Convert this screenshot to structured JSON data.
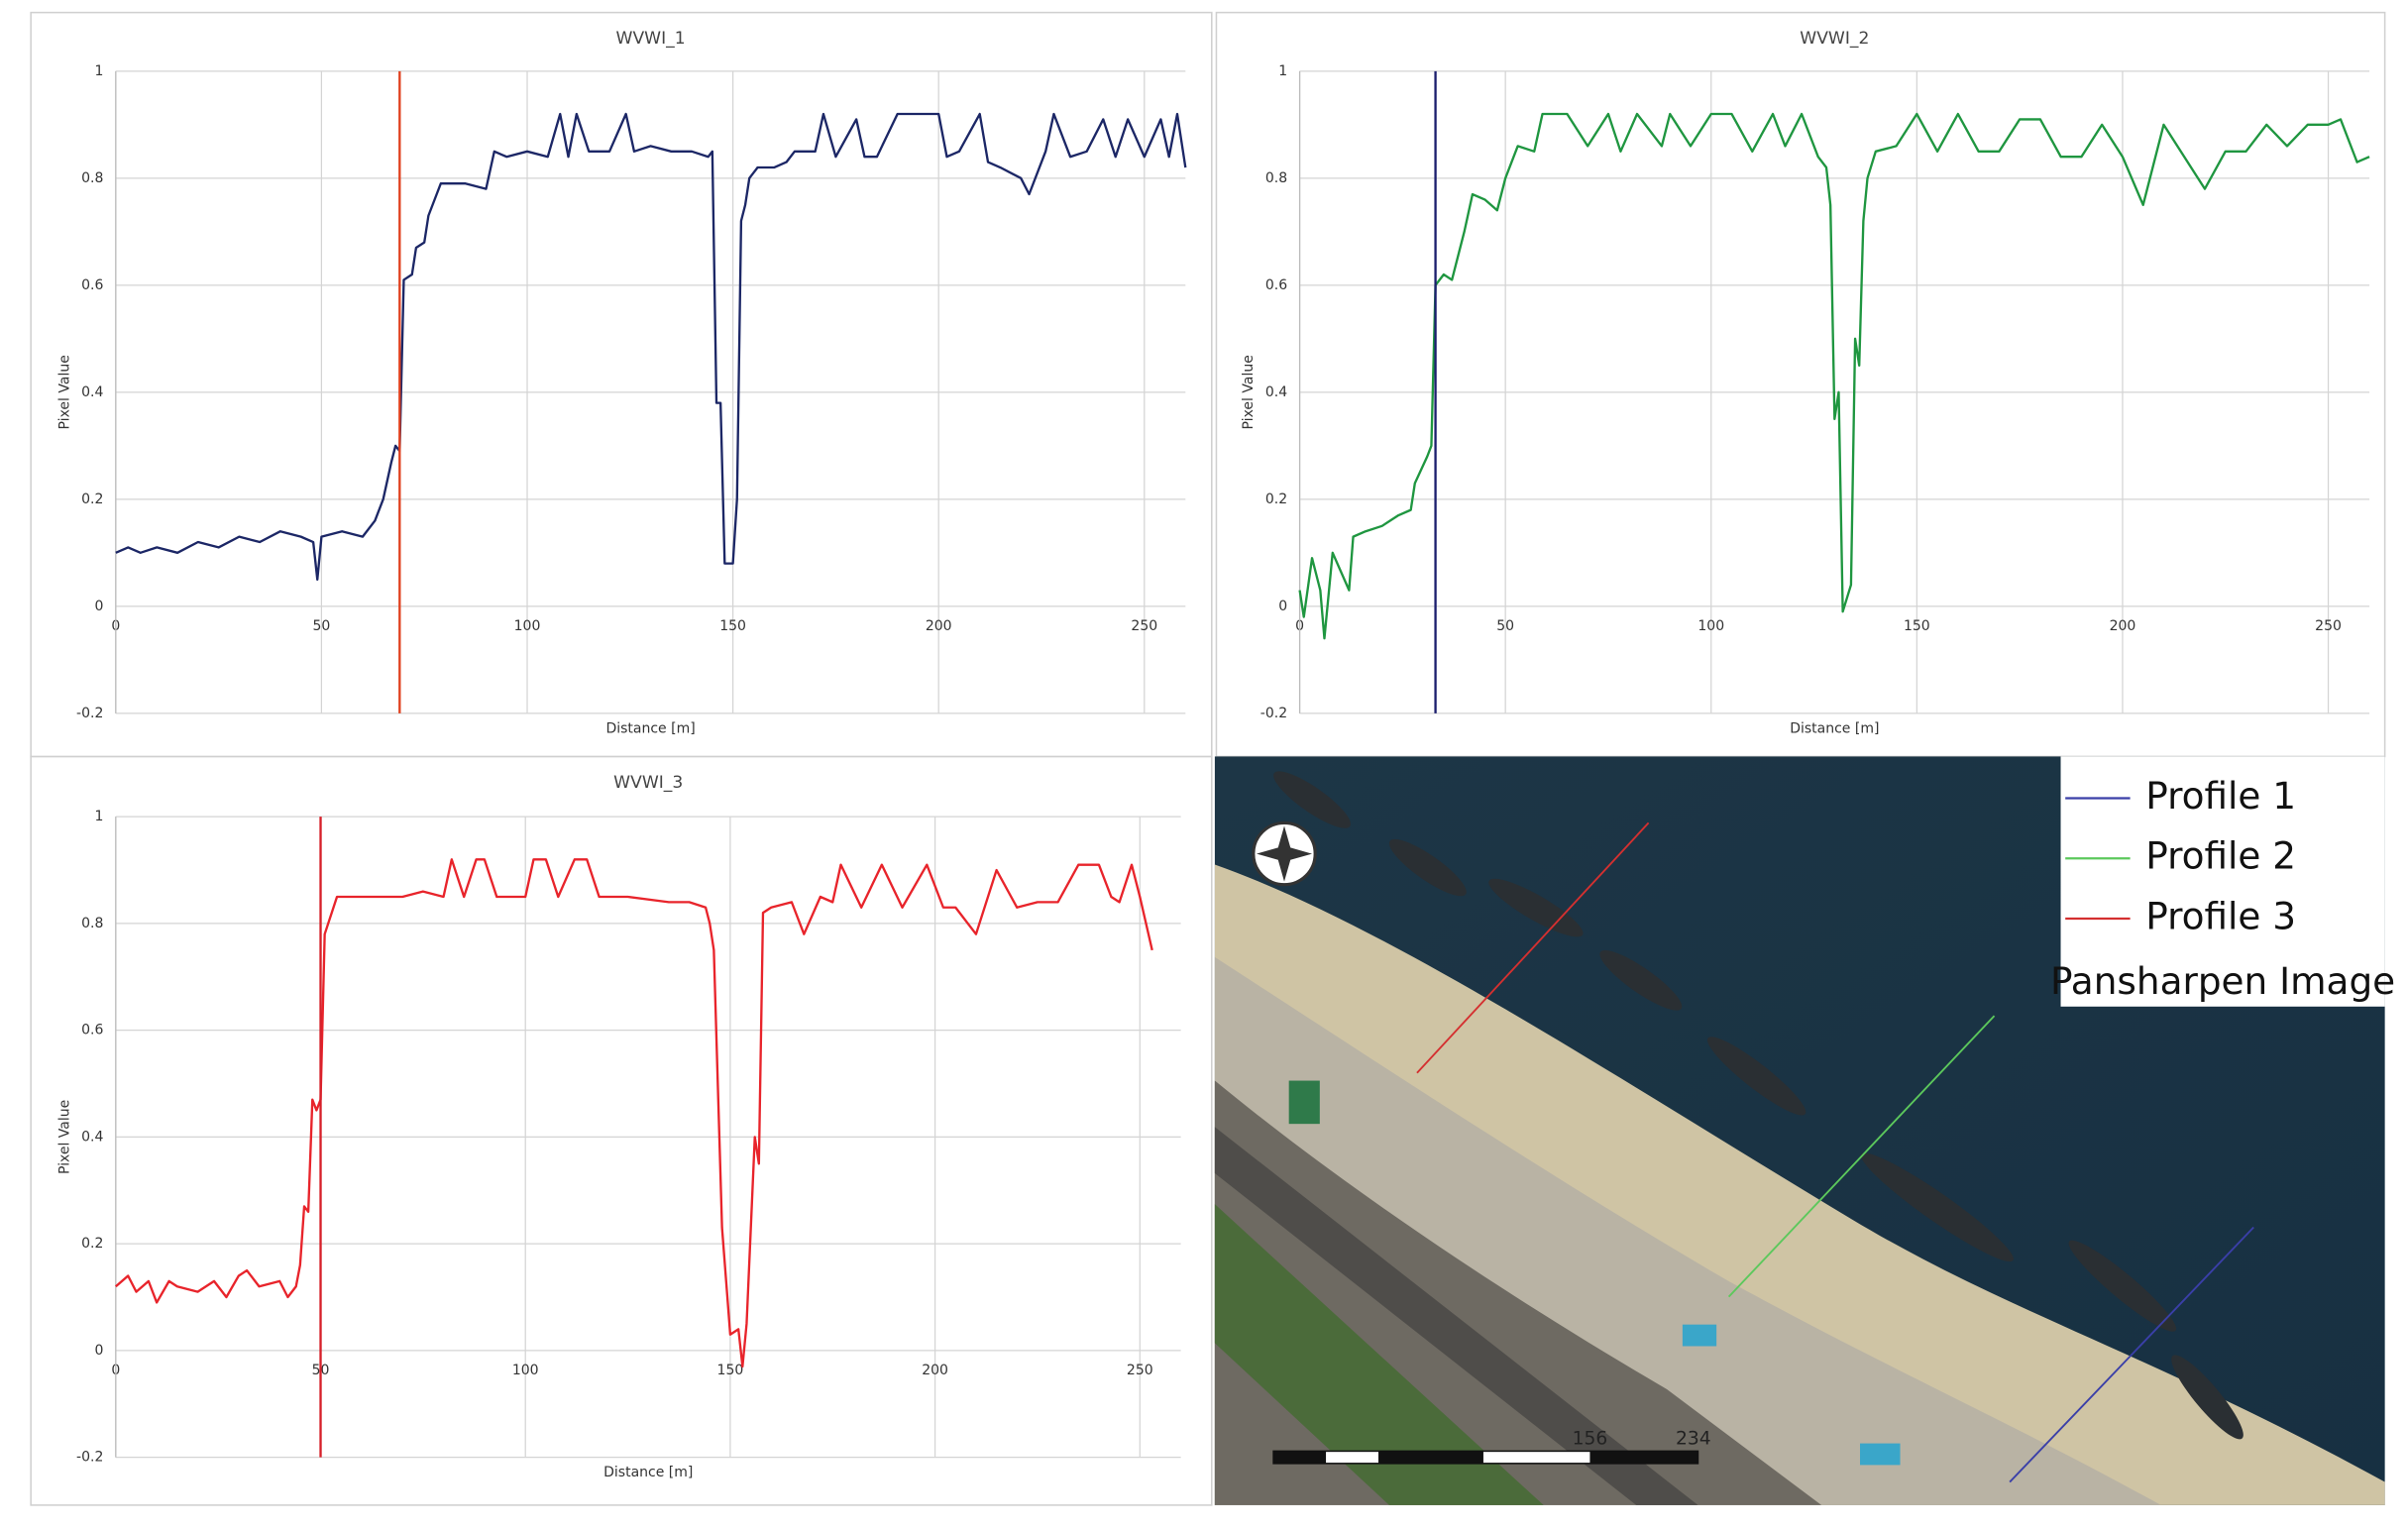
{
  "chart_data": [
    {
      "type": "line",
      "title": "WVWI_1",
      "xlabel": "Distance [m]",
      "ylabel": "Pixel Value",
      "color": "#1c2766",
      "grid": true,
      "xlim": [
        0,
        260
      ],
      "ylim": [
        -0.2,
        1
      ],
      "xticks": [
        0,
        50,
        100,
        150,
        200,
        250
      ],
      "yticks": [
        -0.2,
        0,
        0.2,
        0.4,
        0.6,
        0.8,
        1
      ],
      "vline": {
        "x": 69,
        "color": "#e0401e"
      },
      "x": [
        0,
        3,
        6,
        10,
        15,
        20,
        25,
        30,
        35,
        40,
        45,
        48,
        49,
        50,
        55,
        60,
        63,
        65,
        67,
        68,
        69,
        70,
        72,
        73,
        75,
        76,
        78,
        79,
        85,
        90,
        92,
        95,
        100,
        105,
        108,
        110,
        112,
        115,
        120,
        124,
        126,
        130,
        135,
        140,
        144,
        145,
        146,
        147,
        148,
        150,
        151,
        152,
        153,
        154,
        156,
        160,
        163,
        165,
        170,
        172,
        175,
        180,
        182,
        185,
        190,
        195,
        200,
        202,
        205,
        210,
        212,
        215,
        220,
        222,
        226,
        228,
        232,
        236,
        240,
        243,
        246,
        250,
        254,
        256,
        258,
        260
      ],
      "values": [
        0.1,
        0.11,
        0.1,
        0.11,
        0.1,
        0.12,
        0.11,
        0.13,
        0.12,
        0.14,
        0.13,
        0.12,
        0.05,
        0.13,
        0.14,
        0.13,
        0.16,
        0.2,
        0.27,
        0.3,
        0.29,
        0.61,
        0.62,
        0.67,
        0.68,
        0.73,
        0.77,
        0.79,
        0.79,
        0.78,
        0.85,
        0.84,
        0.85,
        0.84,
        0.92,
        0.84,
        0.92,
        0.85,
        0.85,
        0.92,
        0.85,
        0.86,
        0.85,
        0.85,
        0.84,
        0.85,
        0.38,
        0.38,
        0.08,
        0.08,
        0.2,
        0.72,
        0.75,
        0.8,
        0.82,
        0.82,
        0.83,
        0.85,
        0.85,
        0.92,
        0.84,
        0.91,
        0.84,
        0.84,
        0.92,
        0.92,
        0.92,
        0.84,
        0.85,
        0.92,
        0.83,
        0.82,
        0.8,
        0.77,
        0.85,
        0.92,
        0.84,
        0.85,
        0.91,
        0.84,
        0.91,
        0.84,
        0.91,
        0.84,
        0.92,
        0.82
      ]
    },
    {
      "type": "line",
      "title": "WVWI_2",
      "xlabel": "Distance [m]",
      "ylabel": "Pixel Value",
      "color": "#1f9640",
      "grid": true,
      "xlim": [
        0,
        260
      ],
      "ylim": [
        -0.2,
        1
      ],
      "xticks": [
        0,
        50,
        100,
        150,
        200,
        250
      ],
      "yticks": [
        -0.2,
        0,
        0.2,
        0.4,
        0.6,
        0.8,
        1
      ],
      "vline": {
        "x": 33,
        "color": "#1c1f6e"
      },
      "x": [
        0,
        1,
        3,
        5,
        6,
        8,
        12,
        13,
        16,
        20,
        24,
        27,
        28,
        31,
        32,
        33,
        35,
        37,
        40,
        42,
        45,
        48,
        50,
        53,
        57,
        59,
        65,
        70,
        75,
        78,
        82,
        88,
        90,
        95,
        100,
        105,
        110,
        115,
        118,
        122,
        126,
        128,
        129,
        130,
        131,
        132,
        134,
        135,
        136,
        137,
        138,
        140,
        145,
        150,
        155,
        160,
        165,
        170,
        175,
        180,
        185,
        190,
        195,
        200,
        205,
        210,
        215,
        220,
        225,
        230,
        235,
        240,
        245,
        250,
        253,
        257,
        260
      ],
      "values": [
        0.03,
        -0.02,
        0.09,
        0.03,
        -0.06,
        0.1,
        0.03,
        0.13,
        0.14,
        0.15,
        0.17,
        0.18,
        0.23,
        0.28,
        0.3,
        0.6,
        0.62,
        0.61,
        0.7,
        0.77,
        0.76,
        0.74,
        0.8,
        0.86,
        0.85,
        0.92,
        0.92,
        0.86,
        0.92,
        0.85,
        0.92,
        0.86,
        0.92,
        0.86,
        0.92,
        0.92,
        0.85,
        0.92,
        0.86,
        0.92,
        0.84,
        0.82,
        0.75,
        0.35,
        0.4,
        -0.01,
        0.04,
        0.5,
        0.45,
        0.72,
        0.8,
        0.85,
        0.86,
        0.92,
        0.85,
        0.92,
        0.85,
        0.85,
        0.91,
        0.91,
        0.84,
        0.84,
        0.9,
        0.84,
        0.75,
        0.9,
        0.84,
        0.78,
        0.85,
        0.85,
        0.9,
        0.86,
        0.9,
        0.9,
        0.91,
        0.83,
        0.84
      ]
    },
    {
      "type": "line",
      "title": "WVWI_3",
      "xlabel": "Distance [m]",
      "ylabel": "Pixel Value",
      "color": "#e8242b",
      "grid": true,
      "xlim": [
        0,
        260
      ],
      "ylim": [
        -0.2,
        1
      ],
      "xticks": [
        0,
        50,
        100,
        150,
        200,
        250
      ],
      "yticks": [
        -0.2,
        0,
        0.2,
        0.4,
        0.6,
        0.8,
        1
      ],
      "vline": {
        "x": 50,
        "color": "#d6202a"
      },
      "x": [
        0,
        3,
        5,
        8,
        10,
        13,
        15,
        20,
        24,
        27,
        30,
        32,
        35,
        40,
        42,
        44,
        45,
        46,
        47,
        48,
        49,
        50,
        51,
        54,
        60,
        70,
        75,
        80,
        82,
        85,
        88,
        90,
        93,
        100,
        102,
        105,
        108,
        112,
        115,
        118,
        125,
        135,
        140,
        144,
        145,
        146,
        148,
        150,
        152,
        153,
        154,
        156,
        157,
        158,
        160,
        165,
        168,
        172,
        175,
        177,
        182,
        187,
        192,
        198,
        202,
        205,
        210,
        215,
        220,
        225,
        230,
        235,
        240,
        243,
        245,
        248,
        250,
        253
      ],
      "values": [
        0.12,
        0.14,
        0.11,
        0.13,
        0.09,
        0.13,
        0.12,
        0.11,
        0.13,
        0.1,
        0.14,
        0.15,
        0.12,
        0.13,
        0.1,
        0.12,
        0.16,
        0.27,
        0.26,
        0.47,
        0.45,
        0.47,
        0.78,
        0.85,
        0.85,
        0.85,
        0.86,
        0.85,
        0.92,
        0.85,
        0.92,
        0.92,
        0.85,
        0.85,
        0.92,
        0.92,
        0.85,
        0.92,
        0.92,
        0.85,
        0.85,
        0.84,
        0.84,
        0.83,
        0.8,
        0.75,
        0.23,
        0.03,
        0.04,
        -0.03,
        0.05,
        0.4,
        0.35,
        0.82,
        0.83,
        0.84,
        0.78,
        0.85,
        0.84,
        0.91,
        0.83,
        0.91,
        0.83,
        0.91,
        0.83,
        0.83,
        0.78,
        0.9,
        0.83,
        0.84,
        0.84,
        0.91,
        0.91,
        0.85,
        0.84,
        0.91,
        0.85,
        0.75
      ]
    }
  ],
  "map": {
    "legend": [
      {
        "label": "Profile 1",
        "color": "#3a3fa8"
      },
      {
        "label": "Profile 2",
        "color": "#5cc85c"
      },
      {
        "label": "Profile 3",
        "color": "#d43030"
      }
    ],
    "title": "Pansharpen Image",
    "scale_labels": [
      "156",
      "234"
    ]
  }
}
